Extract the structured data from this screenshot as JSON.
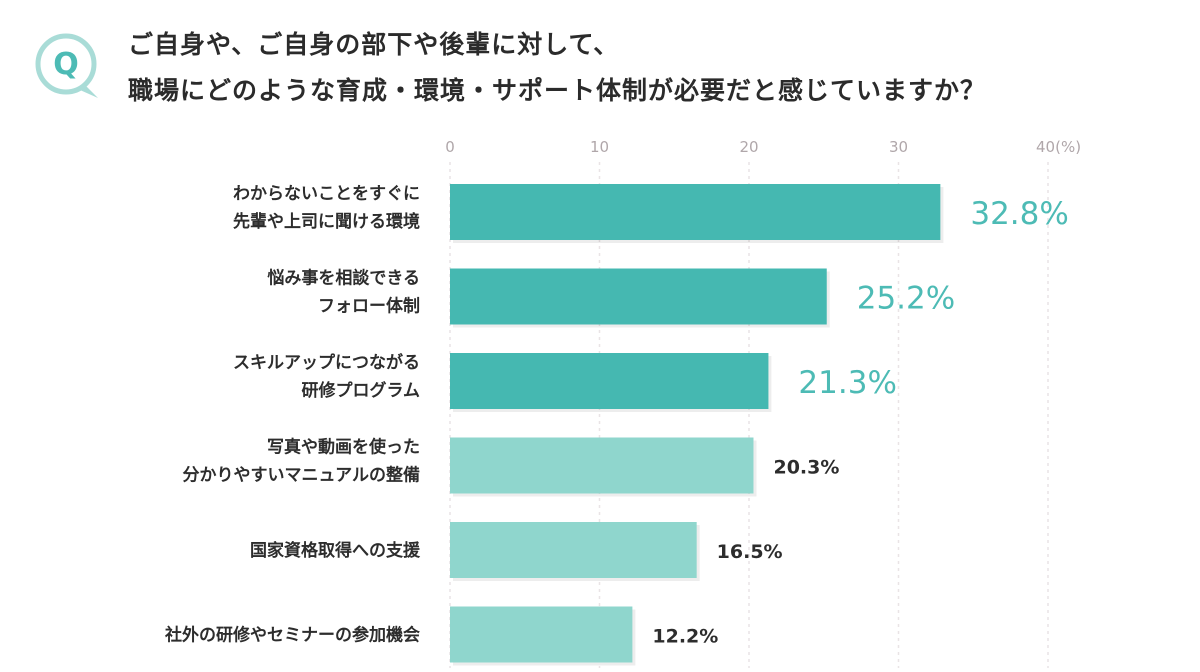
{
  "header": {
    "badge_letter": "Q",
    "title_line1": "ご自身や、ご自身の部下や後輩に対して、",
    "title_line2": "職場にどのような育成・環境・サポート体制が必要だと感じていますか？"
  },
  "colors": {
    "bar_top": "#45b8b1",
    "bar_rest": "#8fd6cd",
    "value_top": "#4dbbb5",
    "badge_ring": "#a9dcd7",
    "badge_letter": "#4dbbb5",
    "grid": "#e9e4e6"
  },
  "chart_data": {
    "type": "bar",
    "orientation": "horizontal",
    "categories": [
      [
        "わからないことをすぐに",
        "先輩や上司に聞ける環境"
      ],
      [
        "悩み事を相談できる",
        "フォロー体制"
      ],
      [
        "スキルアップにつながる",
        "研修プログラム"
      ],
      [
        "写真や動画を使った",
        "分かりやすいマニュアルの整備"
      ],
      [
        "国家資格取得への支援"
      ],
      [
        "社外の研修やセミナーの参加機会"
      ]
    ],
    "values": [
      32.8,
      25.2,
      21.3,
      20.3,
      16.5,
      12.2
    ],
    "value_labels": [
      "32.8%",
      "25.2%",
      "21.3%",
      "20.3%",
      "16.5%",
      "12.2%"
    ],
    "highlighted_count": 3,
    "xlim": [
      0,
      40
    ],
    "ticks": [
      0,
      10,
      20,
      30,
      40
    ],
    "tick_labels": [
      "0",
      "10",
      "20",
      "30",
      "40(%)"
    ],
    "grid": true
  }
}
